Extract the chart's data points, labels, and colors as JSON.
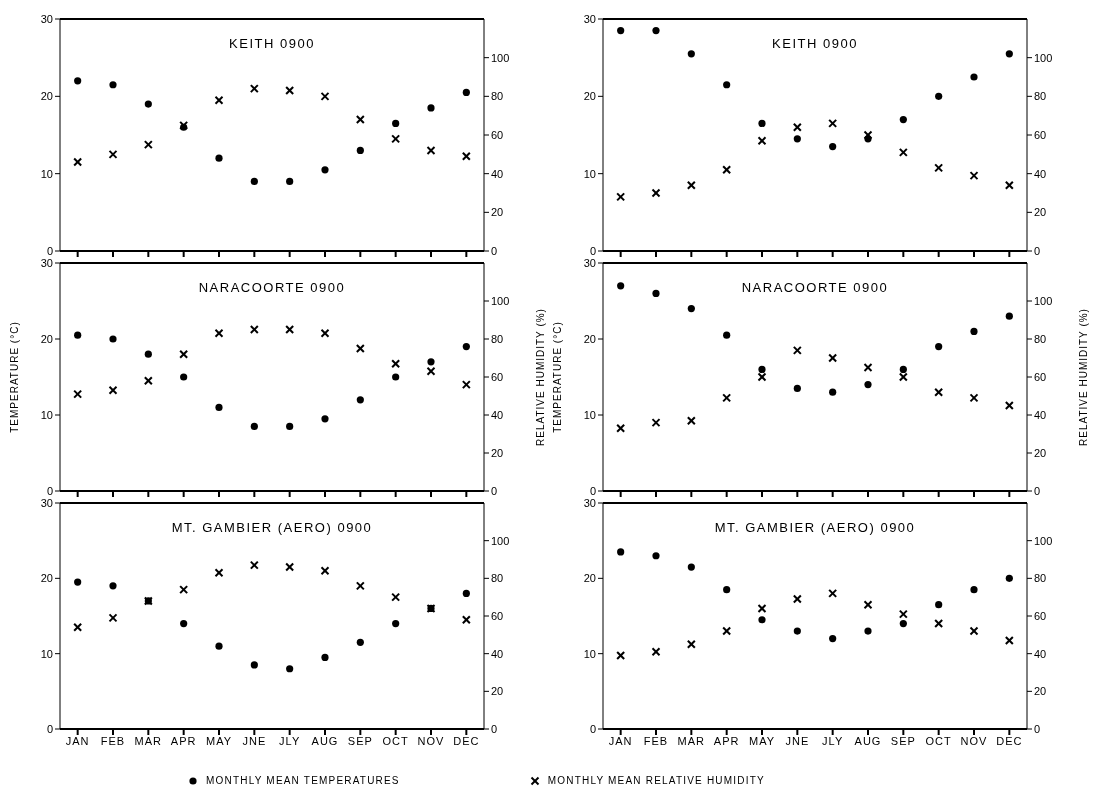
{
  "chart_data": [
    {
      "type": "scatter",
      "title": "KEITH 0900",
      "categories": [
        null,
        null,
        null,
        null,
        null,
        null,
        null,
        null,
        null,
        null,
        null,
        null
      ],
      "ylim": [
        0,
        30
      ],
      "yticks": [
        0,
        10,
        20,
        30
      ],
      "y2lim": [
        0,
        120
      ],
      "y2ticks": [
        0,
        20,
        40,
        60,
        80,
        100
      ],
      "tick_labels": "y",
      "series": [
        {
          "marker": "circle",
          "color": "#000000",
          "values": [
            22,
            21.5,
            19,
            16,
            12,
            9,
            9,
            10.5,
            13,
            16.5,
            18.5,
            20.5
          ]
        },
        {
          "marker": "cross",
          "axis": "y2",
          "color": "#000000",
          "values": [
            46,
            50,
            55,
            65,
            78,
            84,
            83,
            80,
            68,
            58,
            52,
            49
          ]
        }
      ]
    },
    {
      "type": "scatter",
      "title": "KEITH 0900",
      "categories": [
        null,
        null,
        null,
        null,
        null,
        null,
        null,
        null,
        null,
        null,
        null,
        null
      ],
      "ylim": [
        0,
        30
      ],
      "yticks": [
        0,
        10,
        20,
        30
      ],
      "y2lim": [
        0,
        120
      ],
      "y2ticks": [
        0,
        20,
        40,
        60,
        80,
        100
      ],
      "tick_labels": "y",
      "series": [
        {
          "marker": "circle",
          "color": "#000000",
          "values": [
            28.5,
            28.5,
            25.5,
            21.5,
            16.5,
            14.5,
            13.5,
            14.5,
            17,
            20,
            22.5,
            25.5
          ]
        },
        {
          "marker": "cross",
          "axis": "y2",
          "color": "#000000",
          "values": [
            28,
            30,
            34,
            42,
            57,
            64,
            66,
            60,
            51,
            43,
            39,
            34
          ]
        }
      ]
    },
    {
      "type": "scatter",
      "title": "NARACOORTE 0900",
      "categories": [
        null,
        null,
        null,
        null,
        null,
        null,
        null,
        null,
        null,
        null,
        null,
        null
      ],
      "ylim": [
        0,
        30
      ],
      "yticks": [
        0,
        10,
        20,
        30
      ],
      "y2lim": [
        0,
        120
      ],
      "y2ticks": [
        0,
        20,
        40,
        60,
        80,
        100
      ],
      "ylabel": "TEMPERATURE (°C)",
      "y2label": "RELATIVE HUMIDITY (%)",
      "tick_labels": "y",
      "series": [
        {
          "marker": "circle",
          "color": "#000000",
          "values": [
            20.5,
            20,
            18,
            15,
            11,
            8.5,
            8.5,
            9.5,
            12,
            15,
            17,
            19
          ]
        },
        {
          "marker": "cross",
          "axis": "y2",
          "color": "#000000",
          "values": [
            51,
            53,
            58,
            72,
            83,
            85,
            85,
            83,
            75,
            67,
            63,
            56
          ]
        }
      ]
    },
    {
      "type": "scatter",
      "title": "NARACOORTE 0900",
      "categories": [
        null,
        null,
        null,
        null,
        null,
        null,
        null,
        null,
        null,
        null,
        null,
        null
      ],
      "ylim": [
        0,
        30
      ],
      "yticks": [
        0,
        10,
        20,
        30
      ],
      "y2lim": [
        0,
        120
      ],
      "y2ticks": [
        0,
        20,
        40,
        60,
        80,
        100
      ],
      "ylabel": "TEMPERATURE (°C)",
      "y2label": "RELATIVE HUMIDITY (%)",
      "tick_labels": "y",
      "series": [
        {
          "marker": "circle",
          "color": "#000000",
          "values": [
            27,
            26,
            24,
            20.5,
            16,
            13.5,
            13,
            14,
            16,
            19,
            21,
            23
          ]
        },
        {
          "marker": "cross",
          "axis": "y2",
          "color": "#000000",
          "values": [
            33,
            36,
            37,
            49,
            60,
            74,
            70,
            65,
            60,
            52,
            49,
            45
          ]
        }
      ]
    },
    {
      "type": "scatter",
      "title": "MT. GAMBIER (AERO) 0900",
      "categories": [
        "JAN",
        "FEB",
        "MAR",
        "APR",
        "MAY",
        "JNE",
        "JLY",
        "AUG",
        "SEP",
        "OCT",
        "NOV",
        "DEC"
      ],
      "ylim": [
        0,
        30
      ],
      "yticks": [
        0,
        10,
        20,
        30
      ],
      "y2lim": [
        0,
        120
      ],
      "y2ticks": [
        0,
        20,
        40,
        60,
        80,
        100
      ],
      "series": [
        {
          "marker": "circle",
          "color": "#000000",
          "values": [
            19.5,
            19,
            17,
            14,
            11,
            8.5,
            8,
            9.5,
            11.5,
            14,
            16,
            18
          ]
        },
        {
          "marker": "cross",
          "axis": "y2",
          "color": "#000000",
          "values": [
            54,
            59,
            68,
            74,
            83,
            87,
            86,
            84,
            76,
            70,
            64,
            58
          ]
        }
      ]
    },
    {
      "type": "scatter",
      "title": "MT. GAMBIER (AERO) 0900",
      "categories": [
        "JAN",
        "FEB",
        "MAR",
        "APR",
        "MAY",
        "JNE",
        "JLY",
        "AUG",
        "SEP",
        "OCT",
        "NOV",
        "DEC"
      ],
      "ylim": [
        0,
        30
      ],
      "yticks": [
        0,
        10,
        20,
        30
      ],
      "y2lim": [
        0,
        120
      ],
      "y2ticks": [
        0,
        20,
        40,
        60,
        80,
        100
      ],
      "legend": "bottom",
      "series": [
        {
          "name": "MONTHLY MEAN TEMPERATURES",
          "marker": "circle",
          "color": "#000000",
          "values": [
            23.5,
            23,
            21.5,
            18.5,
            14.5,
            13,
            12,
            13,
            14,
            16.5,
            18.5,
            20
          ]
        },
        {
          "name": "MONTHLY MEAN RELATIVE HUMIDITY",
          "marker": "cross",
          "axis": "y2",
          "color": "#000000",
          "values": [
            39,
            41,
            45,
            52,
            64,
            69,
            72,
            66,
            61,
            56,
            52,
            47
          ]
        }
      ]
    }
  ]
}
